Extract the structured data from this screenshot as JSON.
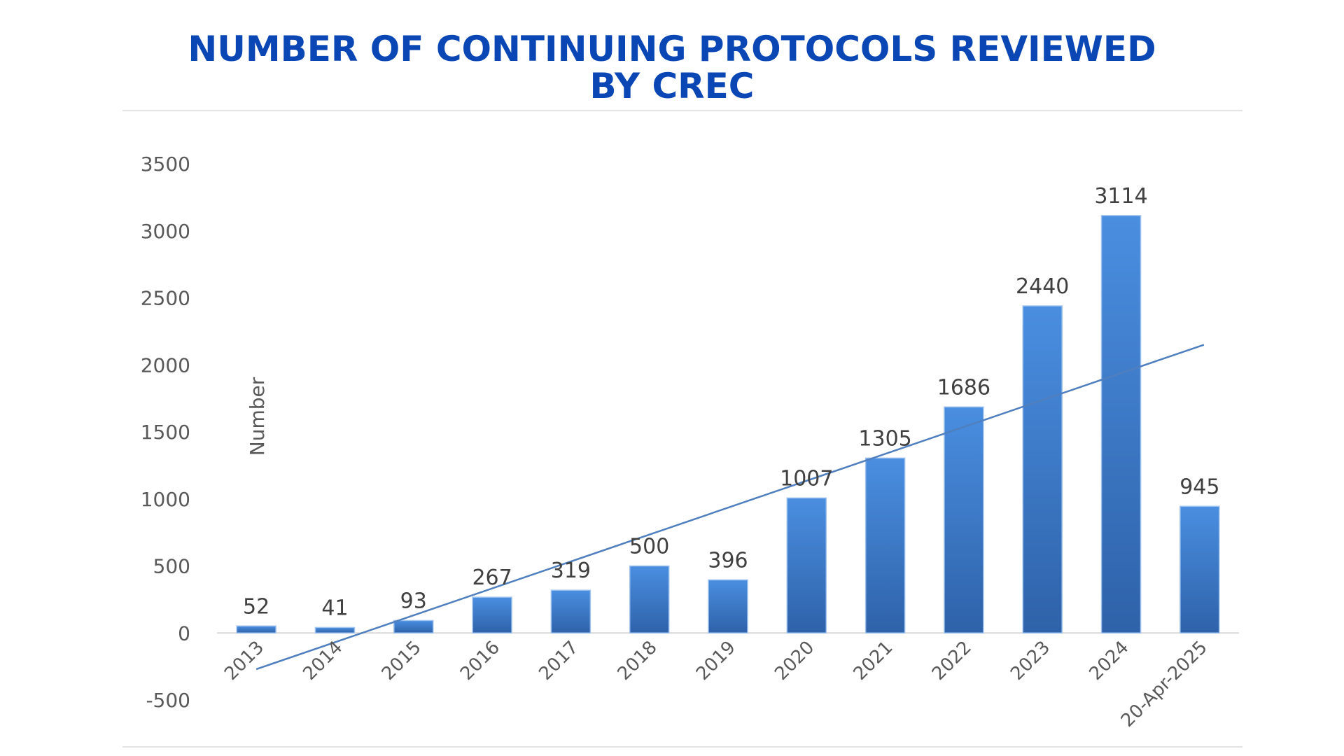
{
  "title": {
    "line1": "NUMBER OF CONTINUING PROTOCOLS REVIEWED",
    "line2": "BY CREC"
  },
  "colors": {
    "title": "#0a47b5",
    "bar_light": "#4a8ee0",
    "bar_dark": "#2e62a9",
    "trendline": "#4f7fbe",
    "axis_text": "#595959",
    "label_text": "#404040"
  },
  "chart_data": {
    "type": "bar",
    "title": "NUMBER OF CONTINUING PROTOCOLS REVIEWED BY CREC",
    "xlabel": "",
    "ylabel": "Number",
    "categories": [
      "2013",
      "2014",
      "2015",
      "2016",
      "2017",
      "2018",
      "2019",
      "2020",
      "2021",
      "2022",
      "2023",
      "2024",
      "20-Apr-2025"
    ],
    "values": [
      52,
      41,
      93,
      267,
      319,
      500,
      396,
      1007,
      1305,
      1686,
      2440,
      3114,
      945
    ],
    "ylim": [
      -500,
      3500
    ],
    "yticks": [
      -500,
      0,
      500,
      1000,
      1500,
      2000,
      2500,
      3000,
      3500
    ],
    "grid": false,
    "data_labels": true,
    "trendline": {
      "type": "linear",
      "start_value": -270,
      "end_value": 2150
    }
  }
}
